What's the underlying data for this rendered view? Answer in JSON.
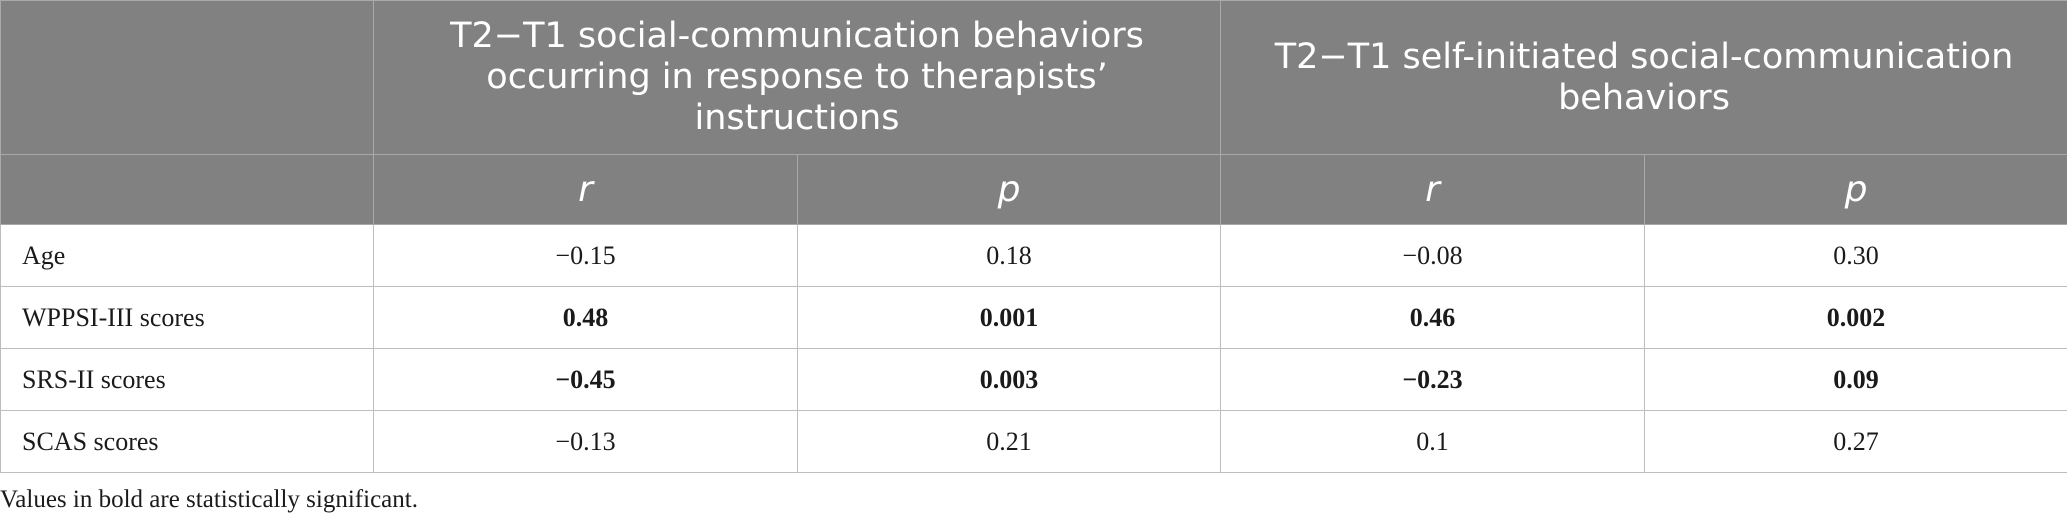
{
  "table": {
    "group_headers": [
      "T2−T1 social-communication behaviors occurring in response to therapists’ instructions",
      "T2−T1 self-initiated social-communication behaviors"
    ],
    "stat_headers": [
      "r",
      "p",
      "r",
      "p"
    ],
    "rows": [
      {
        "label": "Age",
        "cells": [
          {
            "value": "−0.15",
            "bold": false
          },
          {
            "value": "0.18",
            "bold": false
          },
          {
            "value": "−0.08",
            "bold": false
          },
          {
            "value": "0.30",
            "bold": false
          }
        ]
      },
      {
        "label": "WPPSI-III scores",
        "cells": [
          {
            "value": "0.48",
            "bold": true
          },
          {
            "value": "0.001",
            "bold": true
          },
          {
            "value": "0.46",
            "bold": true
          },
          {
            "value": "0.002",
            "bold": true
          }
        ]
      },
      {
        "label": "SRS-II scores",
        "cells": [
          {
            "value": "−0.45",
            "bold": true
          },
          {
            "value": "0.003",
            "bold": true
          },
          {
            "value": "−0.23",
            "bold": true
          },
          {
            "value": "0.09",
            "bold": true
          }
        ]
      },
      {
        "label": "SCAS scores",
        "cells": [
          {
            "value": "−0.13",
            "bold": false
          },
          {
            "value": "0.21",
            "bold": false
          },
          {
            "value": "0.1",
            "bold": false
          },
          {
            "value": "0.27",
            "bold": false
          }
        ]
      }
    ]
  },
  "footnote": "Values in bold are statistically significant.",
  "colors": {
    "header_bg": "#808180",
    "header_text": "#ffffff",
    "grid_line": "#bdbdbd"
  }
}
